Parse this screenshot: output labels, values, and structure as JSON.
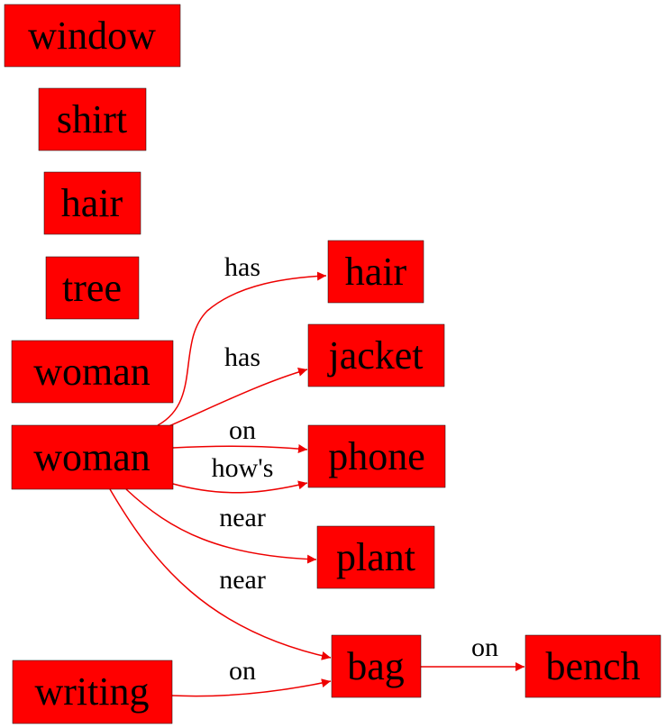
{
  "colors": {
    "node_fill": "#ff0000",
    "node_stroke": "#000000",
    "edge": "#ee0000",
    "text": "#000000"
  },
  "nodes": {
    "window": "window",
    "shirt": "shirt",
    "hair1": "hair",
    "tree": "tree",
    "woman1": "woman",
    "woman2": "woman",
    "writing": "writing",
    "hair2": "hair",
    "jacket": "jacket",
    "phone": "phone",
    "plant": "plant",
    "bag": "bag",
    "bench": "bench"
  },
  "edges": {
    "woman2_hair2": "has",
    "woman2_jacket": "has",
    "woman2_phone_on": "on",
    "woman2_phone_hows": "how's",
    "woman2_plant": "near",
    "woman2_bag": "near",
    "writing_bag": "on",
    "bag_bench": "on"
  }
}
